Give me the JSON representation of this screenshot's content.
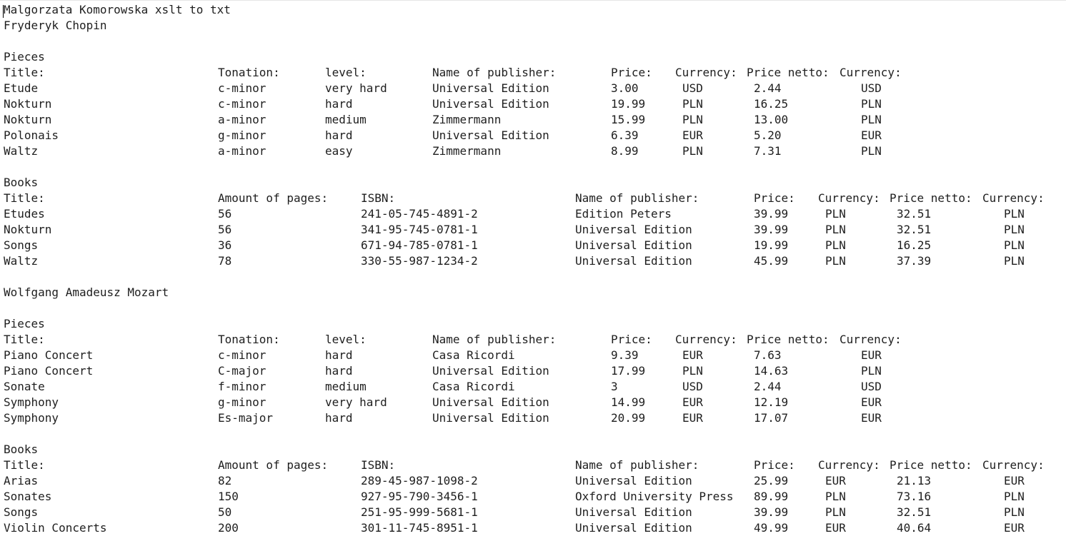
{
  "document": {
    "title_line": "Malgorzata Komorowska xslt to txt",
    "composers": [
      {
        "name": "Fryderyk Chopin",
        "pieces": {
          "heading": "Pieces",
          "headers": [
            "Title:",
            "Tonation:",
            "level:",
            "Name of publisher:",
            "Price:",
            "Currency:",
            "Price netto:",
            "Currency:"
          ],
          "rows": [
            [
              "Etude",
              "c-minor",
              "very hard",
              "Universal Edition",
              "3.00",
              "USD",
              "2.44",
              "USD"
            ],
            [
              "Nokturn",
              "c-minor",
              "hard",
              "Universal Edition",
              "19.99",
              "PLN",
              "16.25",
              "PLN"
            ],
            [
              "Nokturn",
              "a-minor",
              "medium",
              "Zimmermann",
              "15.99",
              "PLN",
              "13.00",
              "PLN"
            ],
            [
              "Polonais",
              "g-minor",
              "hard",
              "Universal Edition",
              "6.39",
              "EUR",
              "5.20",
              "EUR"
            ],
            [
              "Waltz",
              "a-minor",
              "easy",
              "Zimmermann",
              "8.99",
              "PLN",
              "7.31",
              "PLN"
            ]
          ]
        },
        "books": {
          "heading": "Books",
          "headers": [
            "Title:",
            "Amount of pages:",
            "ISBN:",
            "Name of publisher:",
            "Price:",
            "Currency:",
            "Price netto:",
            "Currency:"
          ],
          "rows": [
            [
              "Etudes",
              "56",
              "241-05-745-4891-2",
              "Edition Peters",
              "39.99",
              "PLN",
              "32.51",
              "PLN"
            ],
            [
              "Nokturn",
              "56",
              "341-95-745-0781-1",
              "Universal Edition",
              "39.99",
              "PLN",
              "32.51",
              "PLN"
            ],
            [
              "Songs",
              "36",
              "671-94-785-0781-1",
              "Universal Edition",
              "19.99",
              "PLN",
              "16.25",
              "PLN"
            ],
            [
              "Waltz",
              "78",
              "330-55-987-1234-2",
              "Universal Edition",
              "45.99",
              "PLN",
              "37.39",
              "PLN"
            ]
          ]
        }
      },
      {
        "name": "Wolfgang Amadeusz Mozart",
        "pieces": {
          "heading": "Pieces",
          "headers": [
            "Title:",
            "Tonation:",
            "level:",
            "Name of publisher:",
            "Price:",
            "Currency:",
            "Price netto:",
            "Currency:"
          ],
          "rows": [
            [
              "Piano Concert",
              "c-minor",
              "hard",
              "Casa Ricordi",
              "9.39",
              "EUR",
              "7.63",
              "EUR"
            ],
            [
              "Piano Concert",
              "C-major",
              "hard",
              "Universal Edition",
              "17.99",
              "PLN",
              "14.63",
              "PLN"
            ],
            [
              "Sonate",
              "f-minor",
              "medium",
              "Casa Ricordi",
              "3",
              "USD",
              "2.44",
              "USD"
            ],
            [
              "Symphony",
              "g-minor",
              "very hard",
              "Universal Edition",
              "14.99",
              "EUR",
              "12.19",
              "EUR"
            ],
            [
              "Symphony",
              "Es-major",
              "hard",
              "Universal Edition",
              "20.99",
              "EUR",
              "17.07",
              "EUR"
            ]
          ]
        },
        "books": {
          "heading": "Books",
          "headers": [
            "Title:",
            "Amount of pages:",
            "ISBN:",
            "Name of publisher:",
            "Price:",
            "Currency:",
            "Price netto:",
            "Currency:"
          ],
          "rows": [
            [
              "Arias",
              "82",
              "289-45-987-1098-2",
              "Universal Edition",
              "25.99",
              "EUR",
              "21.13",
              "EUR"
            ],
            [
              "Sonates",
              "150",
              "927-95-790-3456-1",
              "Oxford University Press",
              "89.99",
              "PLN",
              "73.16",
              "PLN"
            ],
            [
              "Songs",
              "50",
              "251-95-999-5681-1",
              "Universal Edition",
              "39.99",
              "PLN",
              "32.51",
              "PLN"
            ],
            [
              "Violin Concerts",
              "200",
              "301-11-745-8951-1",
              "Universal Edition",
              "49.99",
              "EUR",
              "40.64",
              "EUR"
            ]
          ]
        }
      }
    ]
  }
}
